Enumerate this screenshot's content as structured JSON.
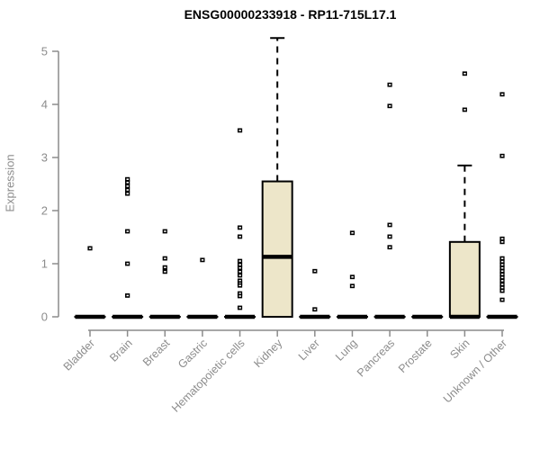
{
  "window": {
    "background": "#ffffff"
  },
  "chart_data": {
    "type": "boxplot",
    "title": "ENSG00000233918 - RP11-715L17.1",
    "ylabel": "Expression",
    "xlabel": "",
    "ylim": [
      0,
      5
    ],
    "yticks": [
      0,
      1,
      2,
      3,
      4,
      5
    ],
    "grid": false,
    "legend": false,
    "colors": {
      "box_fill": "#EDE6C9",
      "box_border": "#000000",
      "median": "#000000",
      "whisker": "#000000",
      "outlier": "#000000",
      "axis": "#8C8C8C",
      "tick_label": "#8C8C8C",
      "title": "#000000"
    },
    "categories": [
      {
        "label": "Bladder",
        "q1": 0,
        "median": 0,
        "q3": 0,
        "whisker_low": 0,
        "whisker_high": 0,
        "outliers": [
          1.29
        ]
      },
      {
        "label": "Brain",
        "q1": 0,
        "median": 0,
        "q3": 0,
        "whisker_low": 0,
        "whisker_high": 0,
        "outliers": [
          2.59,
          2.53,
          2.46,
          2.39,
          2.32,
          1.61,
          1.0,
          0.4
        ]
      },
      {
        "label": "Breast",
        "q1": 0,
        "median": 0,
        "q3": 0,
        "whisker_low": 0,
        "whisker_high": 0,
        "outliers": [
          1.61,
          1.1,
          0.93,
          0.85
        ]
      },
      {
        "label": "Gastric",
        "q1": 0,
        "median": 0,
        "q3": 0,
        "whisker_low": 0,
        "whisker_high": 0,
        "outliers": [
          1.07
        ]
      },
      {
        "label": "Hematopoietic cells",
        "q1": 0,
        "median": 0,
        "q3": 0,
        "whisker_low": 0,
        "whisker_high": 0,
        "outliers": [
          3.51,
          1.68,
          1.51,
          1.05,
          0.98,
          0.92,
          0.85,
          0.78,
          0.68,
          0.63,
          0.59,
          0.44,
          0.39,
          0.17
        ]
      },
      {
        "label": "Kidney",
        "q1": 0,
        "median": 1.13,
        "q3": 2.55,
        "whisker_low": 0,
        "whisker_high": 5.25,
        "outliers": []
      },
      {
        "label": "Liver",
        "q1": 0,
        "median": 0,
        "q3": 0,
        "whisker_low": 0,
        "whisker_high": 0,
        "outliers": [
          0.86,
          0.14
        ]
      },
      {
        "label": "Lung",
        "q1": 0,
        "median": 0,
        "q3": 0,
        "whisker_low": 0,
        "whisker_high": 0,
        "outliers": [
          1.58,
          0.75,
          0.58
        ]
      },
      {
        "label": "Pancreas",
        "q1": 0,
        "median": 0,
        "q3": 0,
        "whisker_low": 0,
        "whisker_high": 0,
        "outliers": [
          4.37,
          3.97,
          1.73,
          1.51,
          1.31
        ]
      },
      {
        "label": "Prostate",
        "q1": 0,
        "median": 0,
        "q3": 0,
        "whisker_low": 0,
        "whisker_high": 0,
        "outliers": []
      },
      {
        "label": "Skin",
        "q1": 0,
        "median": 0,
        "q3": 1.41,
        "whisker_low": 0,
        "whisker_high": 2.85,
        "outliers": [
          4.58,
          3.9
        ]
      },
      {
        "label": "Unknown / Other",
        "q1": 0,
        "median": 0,
        "q3": 0,
        "whisker_low": 0,
        "whisker_high": 0,
        "outliers": [
          4.19,
          3.03,
          1.47,
          1.41,
          1.1,
          1.04,
          0.98,
          0.92,
          0.86,
          0.8,
          0.74,
          0.68,
          0.61,
          0.55,
          0.49,
          0.32
        ]
      }
    ]
  }
}
